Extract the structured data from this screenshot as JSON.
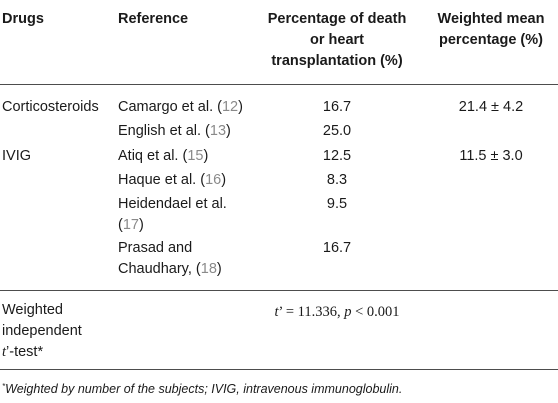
{
  "headers": {
    "drugs": "Drugs",
    "reference": "Reference",
    "percentage_line1": "Percentage of death",
    "percentage_line2": "or heart",
    "percentage_line3": "transplantation (%)",
    "weighted_line1": "Weighted mean",
    "weighted_line2": "percentage (%)"
  },
  "rows": [
    {
      "drug": "Corticosteroids",
      "ref_text": "Camargo et al. (",
      "ref_num": "12",
      "ref_close": ")",
      "pct": "16.7",
      "weighted": "21.4 ± 4.2"
    },
    {
      "drug": "",
      "ref_text": "English et al. (",
      "ref_num": "13",
      "ref_close": ")",
      "pct": "25.0",
      "weighted": ""
    },
    {
      "drug": "IVIG",
      "ref_text": "Atiq et al. (",
      "ref_num": "15",
      "ref_close": ")",
      "pct": "12.5",
      "weighted": "11.5 ± 3.0"
    },
    {
      "drug": "",
      "ref_text": "Haque et al. (",
      "ref_num": "16",
      "ref_close": ")",
      "pct": "8.3",
      "weighted": ""
    },
    {
      "drug": "",
      "ref_text_line1": "Heidendael et al.",
      "ref_text_line2": "(",
      "ref_num": "17",
      "ref_close": ")",
      "pct": "9.5",
      "weighted": ""
    },
    {
      "drug": "",
      "ref_text_line1": "Prasad and",
      "ref_text_line2": "Chaudhary, (",
      "ref_num": "18",
      "ref_close": ")",
      "pct": "16.7",
      "weighted": ""
    }
  ],
  "ttest": {
    "label_line1": "Weighted",
    "label_line2": "independent",
    "label_line3_t": "t",
    "label_line3_rest": "’-test*",
    "stat_t": "t",
    "stat_eq": "’ = 11.336, ",
    "stat_p": "p",
    "stat_rest": " < 0.001"
  },
  "footnote": {
    "marker": "*",
    "text": "Weighted by number of the subjects; IVIG, intravenous immunoglobulin."
  }
}
